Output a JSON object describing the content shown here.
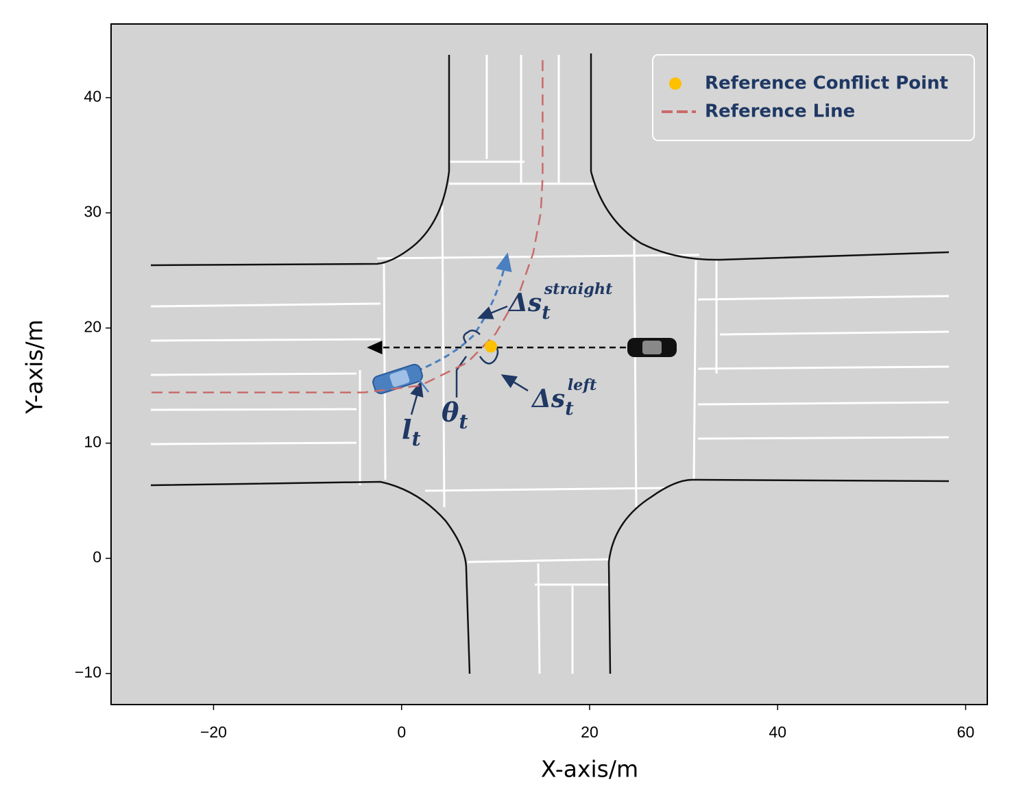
{
  "chart_data": {
    "type": "line",
    "xlabel": "X-axis/m",
    "ylabel": "Y-axis/m",
    "xlim": [
      -30.9,
      62.3
    ],
    "ylim": [
      -12.7,
      46.4
    ],
    "xticks": [
      {
        "value": -20,
        "label": "−20"
      },
      0,
      20,
      40,
      60
    ],
    "yticks": [
      {
        "value": -10,
        "label": "−10"
      },
      0,
      10,
      20,
      30,
      40
    ],
    "grid": false,
    "legend": "upper right",
    "series": [
      {
        "name": "Reference Conflict Point",
        "color": "#ffc000",
        "marker": "circle",
        "x": [
          9.5
        ],
        "values": [
          18.4
        ]
      },
      {
        "name": "Reference Line",
        "color": "#c96b6b",
        "linestyle": "dashed",
        "x": [
          -26.6,
          -4,
          2,
          7,
          10,
          12.5,
          14,
          14.8,
          15,
          15
        ],
        "values": [
          14.4,
          14.4,
          15,
          17,
          19.5,
          23,
          26.5,
          30,
          33,
          43.7
        ]
      }
    ],
    "annotations": [
      {
        "base": "Δs",
        "sub": "t",
        "sup": "straight"
      },
      {
        "base": "Δs",
        "sub": "t",
        "sup": "left"
      },
      {
        "base": "l",
        "sub": "t"
      },
      {
        "base": "θ",
        "sub": "t"
      }
    ]
  }
}
